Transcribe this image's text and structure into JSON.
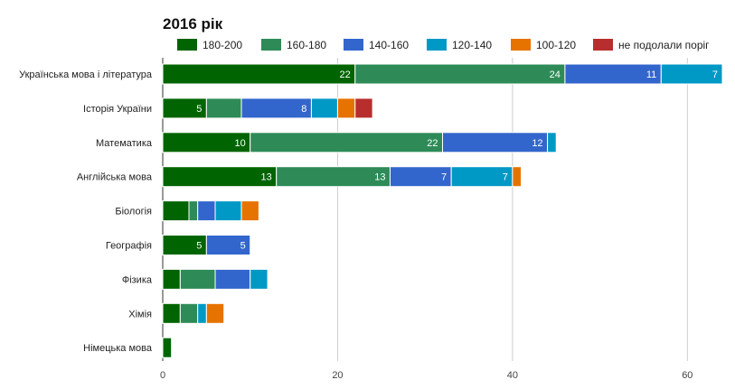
{
  "chart_data": {
    "type": "bar",
    "orientation": "horizontal",
    "stacked": true,
    "title": "2016 рік",
    "xlabel": "",
    "ylabel": "",
    "xlim": [
      0,
      64
    ],
    "x_ticks": [
      0,
      20,
      40,
      60
    ],
    "grid": true,
    "legend_position": "top",
    "categories": [
      "Українська мова і література",
      "Історія України",
      "Математика",
      "Англійська мова",
      "Біологія",
      "Географія",
      "Фізика",
      "Хімія",
      "Німецька мова"
    ],
    "series": [
      {
        "name": "180-200",
        "color": "#006400",
        "values": [
          22,
          5,
          10,
          13,
          3,
          5,
          2,
          2,
          1
        ],
        "labels": [
          "22",
          "5",
          "10",
          "13",
          "",
          "5",
          "",
          "",
          ""
        ]
      },
      {
        "name": "160-180",
        "color": "#2e8b57",
        "values": [
          24,
          4,
          22,
          13,
          1,
          0,
          4,
          2,
          0
        ],
        "labels": [
          "24",
          "",
          "22",
          "13",
          "",
          "",
          "",
          "",
          ""
        ]
      },
      {
        "name": "140-160",
        "color": "#3366cc",
        "values": [
          11,
          8,
          12,
          7,
          2,
          5,
          4,
          0,
          0
        ],
        "labels": [
          "11",
          "8",
          "12",
          "7",
          "",
          "5",
          "",
          "",
          ""
        ]
      },
      {
        "name": "120-140",
        "color": "#0099c6",
        "values": [
          7,
          3,
          1,
          7,
          3,
          0,
          2,
          1,
          0
        ],
        "labels": [
          "7",
          "",
          "",
          "7",
          "",
          "",
          "",
          "",
          ""
        ]
      },
      {
        "name": "100-120",
        "color": "#e67300",
        "values": [
          0,
          2,
          0,
          1,
          2,
          0,
          0,
          2,
          0
        ],
        "labels": [
          "",
          "",
          "",
          "",
          "",
          "",
          "",
          "",
          ""
        ]
      },
      {
        "name": "не подолали поріг",
        "color": "#b82e2e",
        "values": [
          0,
          2,
          0,
          0,
          0,
          0,
          0,
          0,
          0
        ],
        "labels": [
          "",
          "",
          "",
          "",
          "",
          "",
          "",
          "",
          ""
        ]
      }
    ]
  }
}
